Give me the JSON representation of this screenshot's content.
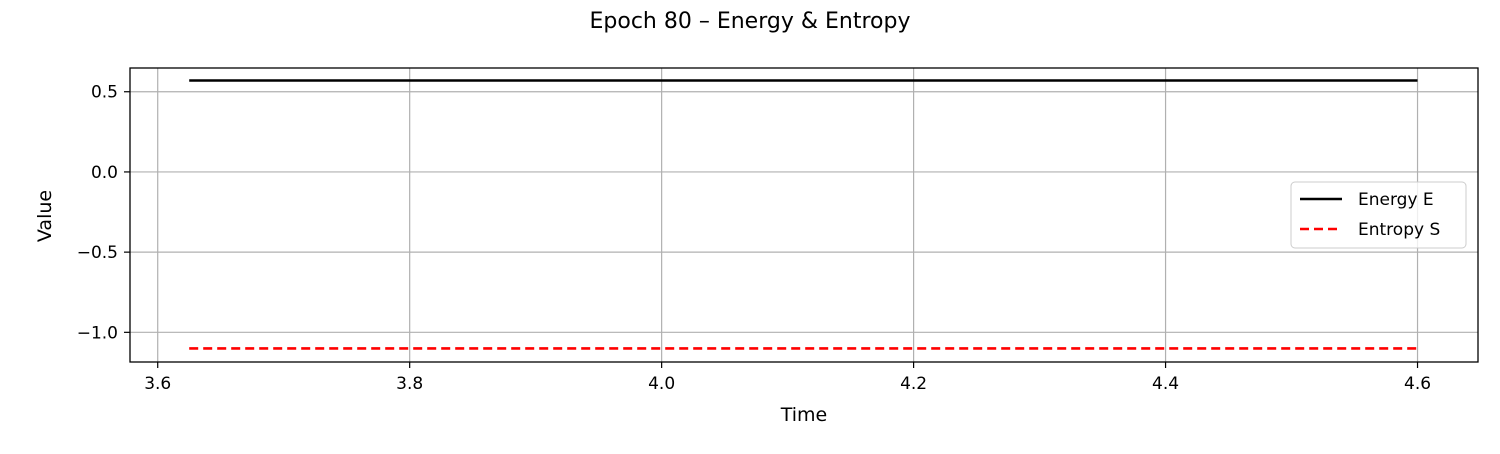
{
  "figure": {
    "title": "Epoch 80 – Energy & Entropy"
  },
  "chart_data": {
    "type": "line",
    "title": "Epoch 80 – Energy & Entropy",
    "xlabel": "Time",
    "ylabel": "Value",
    "xlim": [
      3.578,
      4.648
    ],
    "ylim": [
      -1.185,
      0.648
    ],
    "xticks": [
      3.6,
      3.8,
      4.0,
      4.2,
      4.4,
      4.6
    ],
    "xtick_labels": [
      "3.6",
      "3.8",
      "4.0",
      "4.2",
      "4.4",
      "4.6"
    ],
    "yticks": [
      0.5,
      0.0,
      -0.5,
      -1.0
    ],
    "ytick_labels": [
      "0.5",
      "0.0",
      "−0.5",
      "−1.0"
    ],
    "grid": true,
    "legend_position": "center-right",
    "series": [
      {
        "name": "Energy E",
        "color": "#000000",
        "style": "solid",
        "x": [
          3.625,
          4.6
        ],
        "y": [
          0.57,
          0.57
        ]
      },
      {
        "name": "Entropy S",
        "color": "#ff0000",
        "style": "dashed",
        "x": [
          3.625,
          4.6
        ],
        "y": [
          -1.1,
          -1.1
        ]
      }
    ]
  }
}
